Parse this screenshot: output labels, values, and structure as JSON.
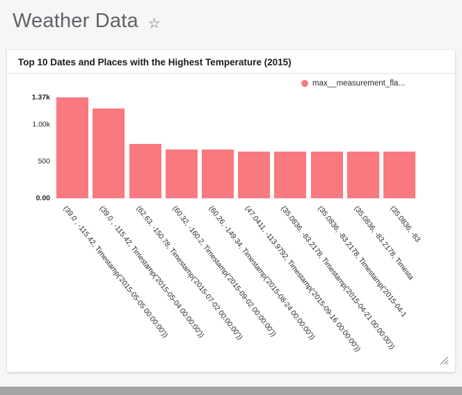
{
  "page": {
    "title": "Weather Data",
    "star_icon": "☆"
  },
  "chart_data": {
    "type": "bar",
    "title": "Top 10 Dates and Places with the Highest Temperature (2015)",
    "series_name": "max__measurement_fla...",
    "bar_color": "#f8797f",
    "ylim": [
      0,
      1370
    ],
    "grid": false,
    "legend_position": "top-right",
    "xlabel": "",
    "ylabel": "",
    "yticks": [
      {
        "label": "0.00",
        "value": 0,
        "bold": true
      },
      {
        "label": "500",
        "value": 500,
        "bold": false
      },
      {
        "label": "1.00k",
        "value": 1000,
        "bold": false
      },
      {
        "label": "1.37k",
        "value": 1370,
        "bold": true
      }
    ],
    "categories": [
      "(39.0 , -115.42, Timestamp('2015-05-05 00:00:00'))",
      "(39.0 , -115.42, Timestamp('2015-05-04 00:00:00'))",
      "(62.63, -150.78, Timestamp('2015-07-02 00:00:00'))",
      "(60.32, -160.2, Timestamp('2015-09-02 00:00:00'))",
      "(60.26, -149.34, Timestamp('2015-08-24 00:00:00'))",
      "(47.0411, -113.9792, Timestamp('2015-09-16 00:00:00'))",
      "(35.0836, -83.2178, Timestamp('2015-04-21 00:00:00'))",
      "(35.0836, -83.2178, Timestamp('2015-04-1",
      "(35.0836, -83.2178, Timesta",
      "(35.0836, -83"
    ],
    "values": [
      1370,
      1215,
      740,
      665,
      660,
      634,
      633,
      632,
      631,
      630
    ]
  }
}
